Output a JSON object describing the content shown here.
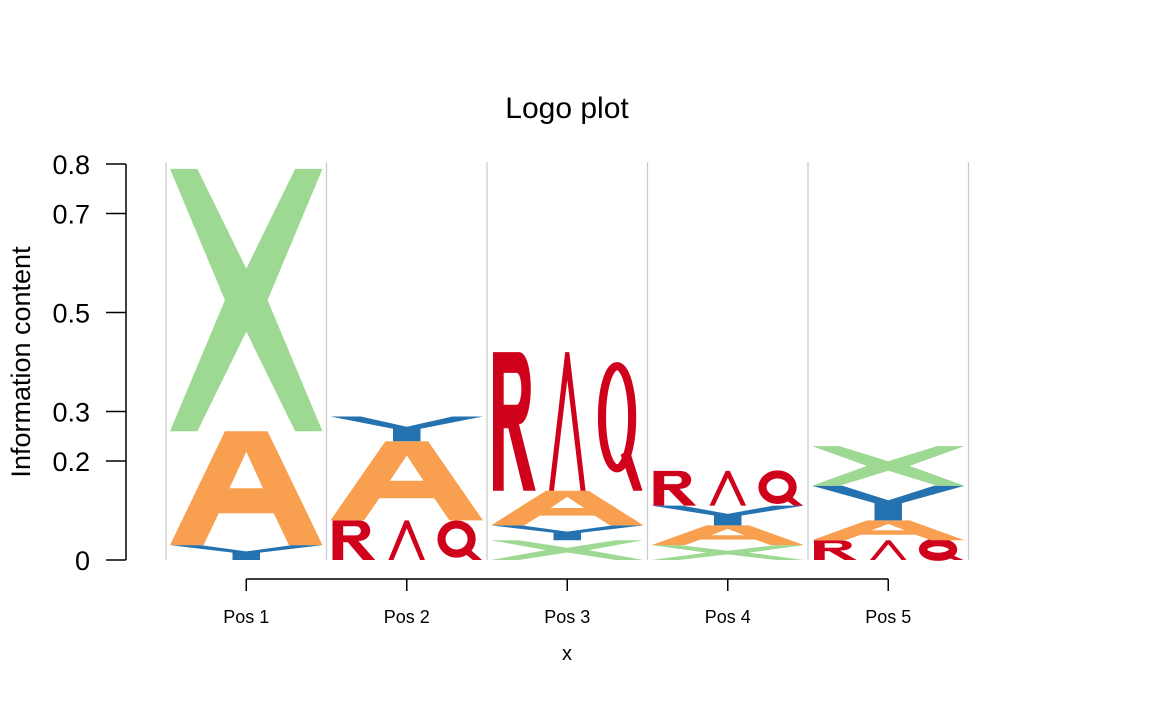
{
  "chart_data": {
    "type": "sequence-logo",
    "title": "Logo plot",
    "xlabel": "x",
    "ylabel": "Information content",
    "categories": [
      "Pos 1",
      "Pos 2",
      "Pos 3",
      "Pos 4",
      "Pos 5"
    ],
    "y_ticks": [
      0,
      0.2,
      0.3,
      0.5,
      0.7,
      0.8
    ],
    "y_tick_labels": [
      "0",
      "0.2",
      "0.3",
      "0.5",
      "0.7",
      "0.8"
    ],
    "ylim": [
      0,
      0.8
    ],
    "grid": "vertical separators between positions",
    "colors": {
      "X": "#9ED993",
      "A": "#F9A050",
      "Y": "#2572B0",
      "RAQ": "#D0021B",
      "separator": "#cccccc"
    },
    "series": [
      {
        "name": "Y",
        "values": [
          0.03,
          0.05,
          0.03,
          0.04,
          0.07
        ]
      },
      {
        "name": "A",
        "values": [
          0.23,
          0.16,
          0.07,
          0.04,
          0.04
        ]
      },
      {
        "name": "X",
        "values": [
          0.53,
          0.0,
          0.04,
          0.03,
          0.08
        ]
      },
      {
        "name": "RAQ",
        "values": [
          0.0,
          0.08,
          0.28,
          0.07,
          0.04
        ]
      }
    ],
    "stacks": [
      [
        {
          "glyph": "Y",
          "height": 0.03
        },
        {
          "glyph": "A",
          "height": 0.23
        },
        {
          "glyph": "X",
          "height": 0.53
        }
      ],
      [
        {
          "glyph": "RAQ",
          "height": 0.08
        },
        {
          "glyph": "A",
          "height": 0.16
        },
        {
          "glyph": "Y",
          "height": 0.05
        }
      ],
      [
        {
          "glyph": "X",
          "height": 0.04
        },
        {
          "glyph": "Y",
          "height": 0.03
        },
        {
          "glyph": "A",
          "height": 0.07
        },
        {
          "glyph": "RAQ",
          "height": 0.28
        }
      ],
      [
        {
          "glyph": "X",
          "height": 0.03
        },
        {
          "glyph": "A",
          "height": 0.04
        },
        {
          "glyph": "Y",
          "height": 0.04
        },
        {
          "glyph": "RAQ",
          "height": 0.07
        }
      ],
      [
        {
          "glyph": "RAQ",
          "height": 0.04
        },
        {
          "glyph": "A",
          "height": 0.04
        },
        {
          "glyph": "Y",
          "height": 0.07
        },
        {
          "glyph": "X",
          "height": 0.08
        }
      ]
    ]
  }
}
